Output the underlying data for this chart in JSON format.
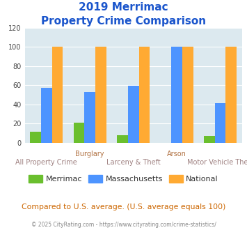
{
  "title_line1": "2019 Merrimac",
  "title_line2": "Property Crime Comparison",
  "categories": [
    "All Property Crime",
    "Burglary",
    "Larceny & Theft",
    "Arson",
    "Motor Vehicle Theft"
  ],
  "merrimac": [
    11,
    21,
    8,
    0,
    7
  ],
  "massachusetts": [
    57,
    53,
    59,
    100,
    41
  ],
  "national": [
    100,
    100,
    100,
    100,
    100
  ],
  "color_merrimac": "#6abf2e",
  "color_massachusetts": "#4d94ff",
  "color_national": "#ffaa33",
  "ylim": [
    0,
    120
  ],
  "yticks": [
    0,
    20,
    40,
    60,
    80,
    100,
    120
  ],
  "background_color": "#dce9ef",
  "title_color": "#1a55cc",
  "xlabel_color_top": "#b07040",
  "xlabel_color_bot": "#9e8080",
  "legend_label_color": "#333333",
  "footer_text": "Compared to U.S. average. (U.S. average equals 100)",
  "copyright_text": "© 2025 CityRating.com - https://www.cityrating.com/crime-statistics/",
  "footer_color": "#cc6600",
  "copyright_color": "#888888",
  "line1_labels": {
    "1": "Burglary",
    "3": "Arson"
  },
  "line2_labels": {
    "0": "All Property Crime",
    "2": "Larceny & Theft",
    "4": "Motor Vehicle Theft"
  }
}
